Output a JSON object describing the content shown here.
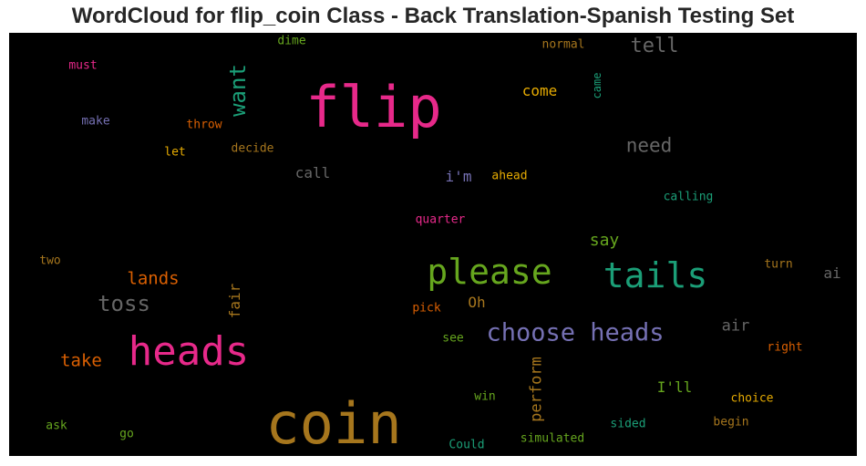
{
  "title": "WordCloud for flip_coin Class - Back Translation-Spanish Testing Set",
  "chart_data": {
    "type": "wordcloud",
    "words": [
      {
        "text": "coin",
        "color": "#a6761d"
      },
      {
        "text": "flip",
        "color": "#e7298a"
      },
      {
        "text": "heads",
        "color": "#e7298a"
      },
      {
        "text": "please",
        "color": "#66a61e"
      },
      {
        "text": "tails",
        "color": "#1b9e77"
      },
      {
        "text": "choose heads",
        "color": "#7570b3"
      },
      {
        "text": "toss",
        "color": "#666666"
      },
      {
        "text": "want",
        "color": "#1b9e77"
      },
      {
        "text": "tell",
        "color": "#666666"
      },
      {
        "text": "need",
        "color": "#666666"
      },
      {
        "text": "lands",
        "color": "#d95f02"
      },
      {
        "text": "take",
        "color": "#d95f02"
      },
      {
        "text": "perform",
        "color": "#a6761d"
      },
      {
        "text": "say",
        "color": "#66a61e"
      },
      {
        "text": "come",
        "color": "#e6ab02"
      },
      {
        "text": "call",
        "color": "#666666"
      },
      {
        "text": "fair",
        "color": "#a6761d"
      },
      {
        "text": "Oh",
        "color": "#a6761d"
      },
      {
        "text": "i'm",
        "color": "#7570b3"
      },
      {
        "text": "air",
        "color": "#666666"
      },
      {
        "text": "I'll",
        "color": "#66a61e"
      },
      {
        "text": "ai",
        "color": "#666666"
      },
      {
        "text": "came",
        "color": "#1b9e77"
      },
      {
        "text": "dime",
        "color": "#66a61e"
      },
      {
        "text": "normal",
        "color": "#a6761d"
      },
      {
        "text": "must",
        "color": "#e7298a"
      },
      {
        "text": "make",
        "color": "#7570b3"
      },
      {
        "text": "throw",
        "color": "#d95f02"
      },
      {
        "text": "let",
        "color": "#e6ab02"
      },
      {
        "text": "decide",
        "color": "#a6761d"
      },
      {
        "text": "ahead",
        "color": "#e6ab02"
      },
      {
        "text": "calling",
        "color": "#1b9e77"
      },
      {
        "text": "quarter",
        "color": "#e7298a"
      },
      {
        "text": "two",
        "color": "#a6761d"
      },
      {
        "text": "turn",
        "color": "#a6761d"
      },
      {
        "text": "pick",
        "color": "#d95f02"
      },
      {
        "text": "see",
        "color": "#66a61e"
      },
      {
        "text": "right",
        "color": "#d95f02"
      },
      {
        "text": "win",
        "color": "#66a61e"
      },
      {
        "text": "choice",
        "color": "#e6ab02"
      },
      {
        "text": "ask",
        "color": "#66a61e"
      },
      {
        "text": "go",
        "color": "#66a61e"
      },
      {
        "text": "sided",
        "color": "#1b9e77"
      },
      {
        "text": "begin",
        "color": "#a6761d"
      },
      {
        "text": "Could",
        "color": "#1b9e77"
      },
      {
        "text": "simulated",
        "color": "#66a61e"
      }
    ]
  }
}
